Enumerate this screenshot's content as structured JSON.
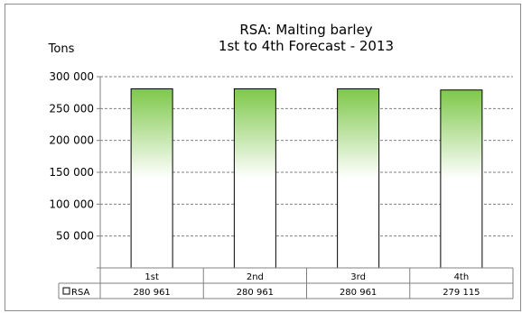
{
  "chart_data": {
    "type": "bar",
    "title_lines": [
      "RSA: Malting barley",
      "1st to 4th Forecast - 2013"
    ],
    "ylabel": "Tons",
    "xlabel": "",
    "ylim": [
      0,
      300000
    ],
    "y_ticks": [
      {
        "value": 0,
        "label": ""
      },
      {
        "value": 50000,
        "label": "50 000"
      },
      {
        "value": 100000,
        "label": "100 000"
      },
      {
        "value": 150000,
        "label": "150 000"
      },
      {
        "value": 200000,
        "label": "200 000"
      },
      {
        "value": 250000,
        "label": "250 000"
      },
      {
        "value": 300000,
        "label": "300 000"
      }
    ],
    "grid": true,
    "categories": [
      "1st",
      "2nd",
      "3rd",
      "4th"
    ],
    "series": [
      {
        "name": "RSA",
        "values": [
          280961,
          280961,
          280961,
          279115
        ],
        "value_labels": [
          "280 961",
          "280 961",
          "280 961",
          "279 115"
        ]
      }
    ],
    "legend": "data table, bottom",
    "colors": {
      "bar_top": "#7ec84a",
      "bar_bottom": "#ffffff",
      "bar_edge": "#000000",
      "grid": "#808080",
      "axis": "#808080"
    }
  }
}
